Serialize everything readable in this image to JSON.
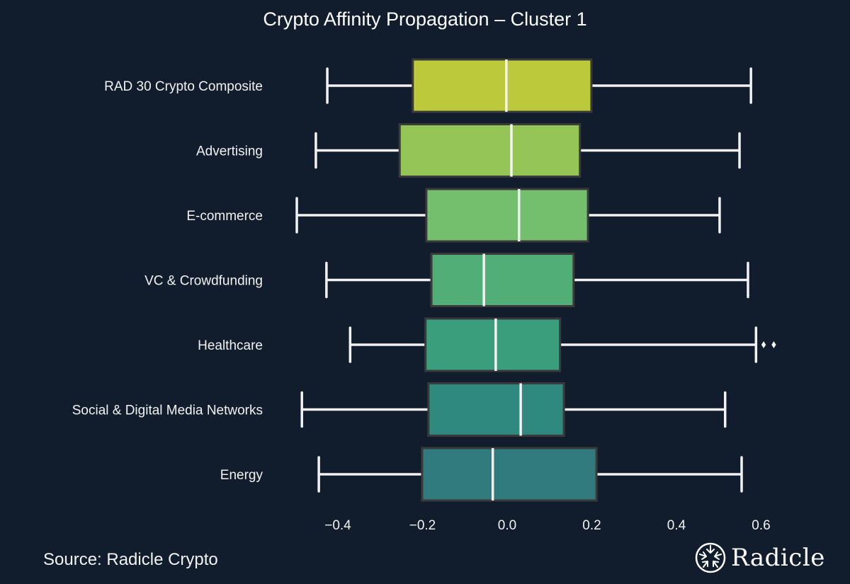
{
  "chart_data": {
    "type": "boxplot",
    "orientation": "horizontal",
    "title": "Crypto Affinity Propagation – Cluster 1",
    "xlabel": "",
    "ylabel": "",
    "xlim": [
      -0.52,
      0.67
    ],
    "xticks": [
      -0.4,
      -0.2,
      0.0,
      0.2,
      0.4,
      0.6
    ],
    "xtick_labels": [
      "−0.4",
      "−0.2",
      "0.0",
      "0.2",
      "0.4",
      "0.6"
    ],
    "grid": false,
    "categories": [
      "RAD 30 Crypto Composite",
      "Advertising",
      "E-commerce",
      "VC & Crowdfunding",
      "Healthcare",
      "Social & Digital Media Networks",
      "Energy"
    ],
    "boxes": [
      {
        "name": "RAD 30 Crypto Composite",
        "whisker_low": -0.425,
        "q1": -0.223,
        "median": -0.002,
        "q3": 0.199,
        "whisker_high": 0.576,
        "outliers": [],
        "color": "#BBC93A"
      },
      {
        "name": "Advertising",
        "whisker_low": -0.452,
        "q1": -0.254,
        "median": 0.01,
        "q3": 0.172,
        "whisker_high": 0.549,
        "outliers": [],
        "color": "#95C556"
      },
      {
        "name": "E-commerce",
        "whisker_low": -0.497,
        "q1": -0.191,
        "median": 0.028,
        "q3": 0.191,
        "whisker_high": 0.502,
        "outliers": [],
        "color": "#74BF6D"
      },
      {
        "name": "VC & Crowdfunding",
        "whisker_low": -0.427,
        "q1": -0.179,
        "median": -0.055,
        "q3": 0.157,
        "whisker_high": 0.569,
        "outliers": [],
        "color": "#51AE77"
      },
      {
        "name": "Healthcare",
        "whisker_low": -0.371,
        "q1": -0.193,
        "median": -0.027,
        "q3": 0.125,
        "whisker_high": 0.588,
        "outliers": [
          0.606,
          0.63
        ],
        "color": "#3A9D7C"
      },
      {
        "name": "Social & Digital Media Networks",
        "whisker_low": -0.485,
        "q1": -0.186,
        "median": 0.032,
        "q3": 0.134,
        "whisker_high": 0.515,
        "outliers": [],
        "color": "#2F897E"
      },
      {
        "name": "Energy",
        "whisker_low": -0.445,
        "q1": -0.201,
        "median": -0.034,
        "q3": 0.211,
        "whisker_high": 0.554,
        "outliers": [],
        "color": "#317A7E"
      }
    ]
  },
  "footer": {
    "source": "Source: Radicle Crypto",
    "logo_text": "Radicle"
  },
  "colors": {
    "background": "#111D2D",
    "text": "#F2F2F2",
    "box_edge": "#3A3A3A",
    "whisker": "#F2F2F2"
  }
}
